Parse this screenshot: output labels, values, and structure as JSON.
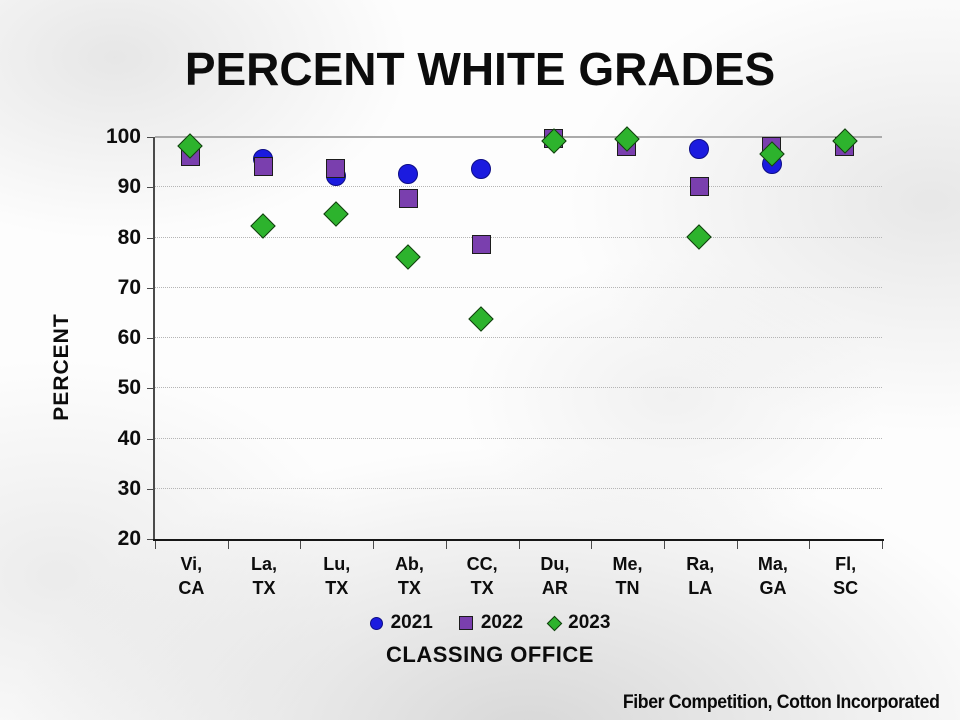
{
  "slide": {
    "title": "PERCENT WHITE GRADES",
    "footer": "Fiber Competition, Cotton Incorporated"
  },
  "chart_data": {
    "type": "scatter",
    "title": "PERCENT WHITE GRADES",
    "xlabel": "CLASSING OFFICE",
    "ylabel": "PERCENT",
    "ylim": [
      20,
      100
    ],
    "yticks": [
      20,
      30,
      40,
      50,
      60,
      70,
      80,
      90,
      100
    ],
    "grid": "horizontal-dotted, top line solid",
    "legend_position": "bottom-center",
    "categories": [
      {
        "top": "Vi,",
        "bottom": "CA"
      },
      {
        "top": "La,",
        "bottom": "TX"
      },
      {
        "top": "Lu,",
        "bottom": "TX"
      },
      {
        "top": "Ab,",
        "bottom": "TX"
      },
      {
        "top": "CC,",
        "bottom": "TX"
      },
      {
        "top": "Du,",
        "bottom": "AR"
      },
      {
        "top": "Me,",
        "bottom": "TN"
      },
      {
        "top": "Ra,",
        "bottom": "LA"
      },
      {
        "top": "Ma,",
        "bottom": "GA"
      },
      {
        "top": "Fl,",
        "bottom": "SC"
      }
    ],
    "series": [
      {
        "name": "2021",
        "marker": "circle",
        "color": "#1b1bdf",
        "values": [
          null,
          95.5,
          92,
          92.5,
          93.5,
          null,
          null,
          97.5,
          94.5,
          null
        ]
      },
      {
        "name": "2022",
        "marker": "square",
        "color": "#7a3fae",
        "values": [
          96,
          94,
          93.5,
          87.5,
          78.5,
          99.5,
          98,
          90,
          98,
          98
        ]
      },
      {
        "name": "2023",
        "marker": "diamond",
        "color": "#2db32d",
        "values": [
          98,
          82,
          84.5,
          76,
          63.5,
          99,
          99.5,
          80,
          96.5,
          99
        ]
      }
    ]
  }
}
